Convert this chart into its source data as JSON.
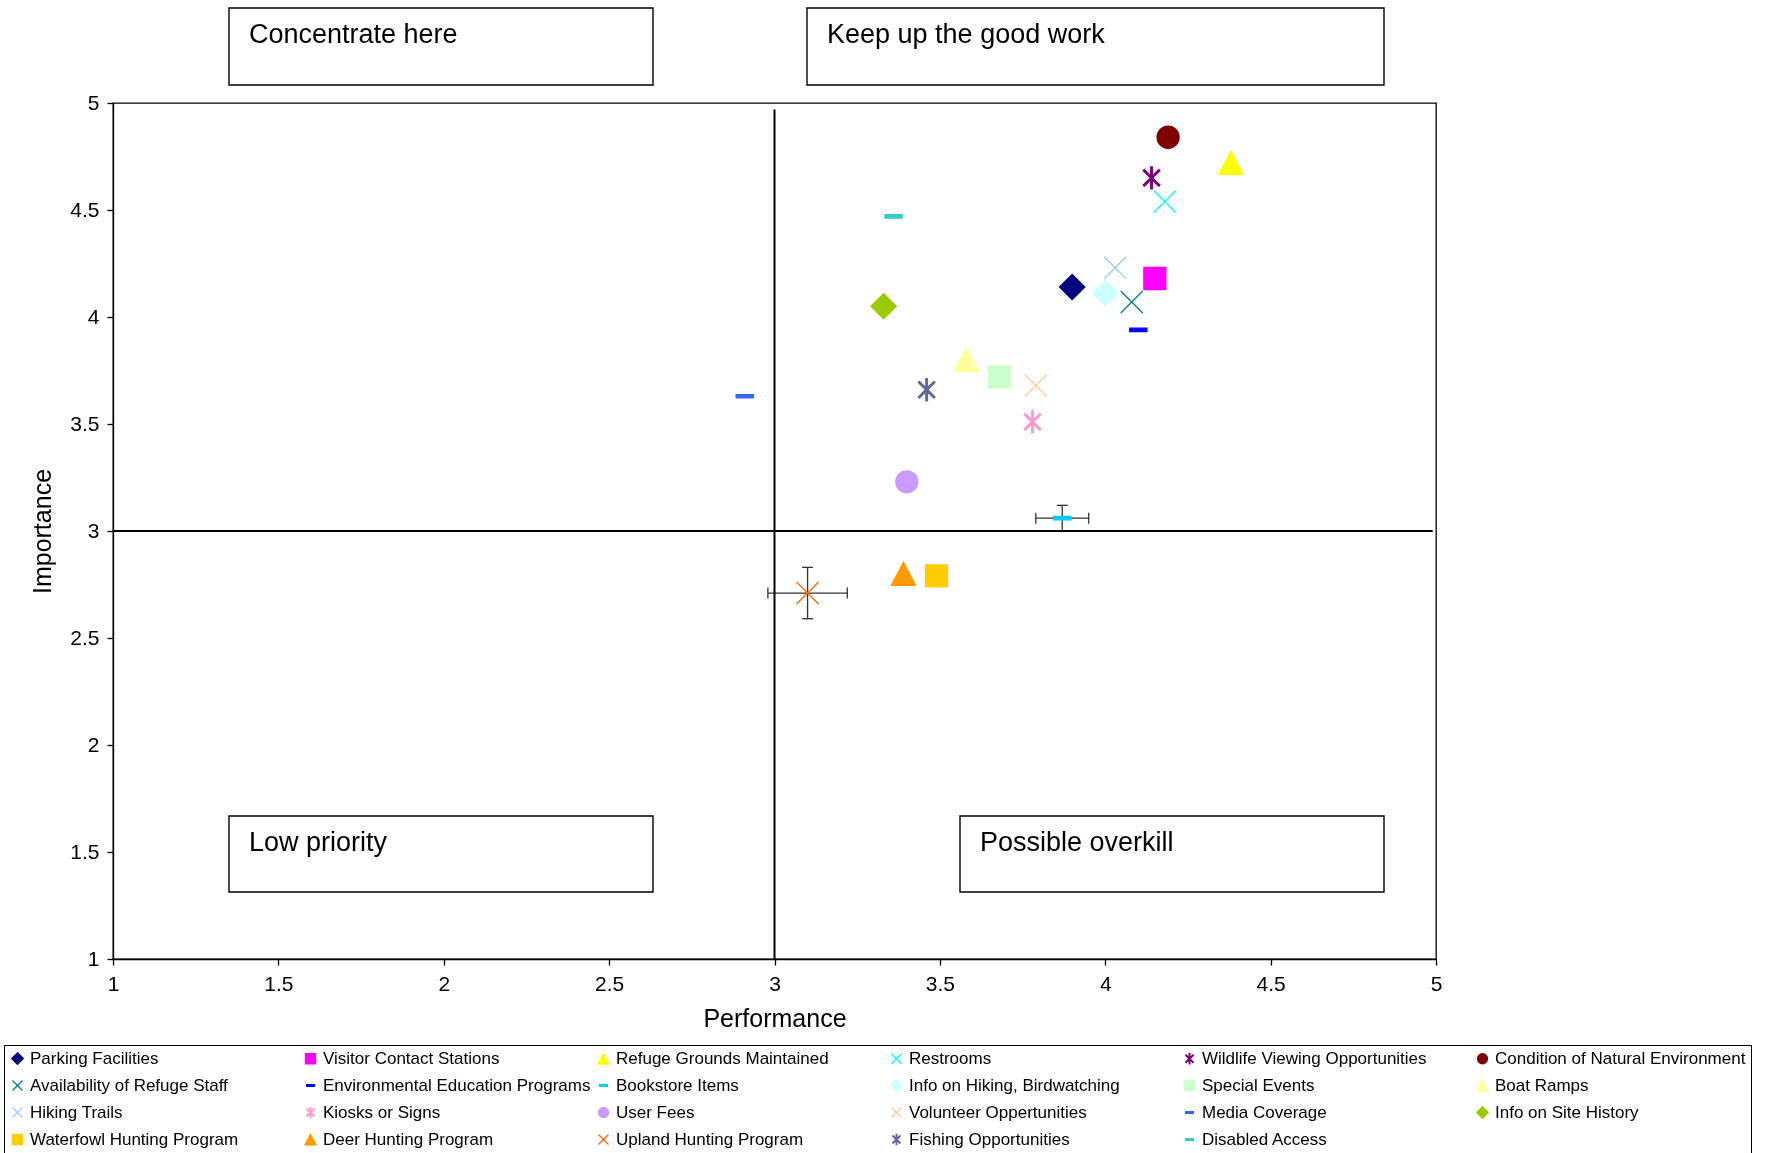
{
  "chart_data": {
    "type": "scatter",
    "xlabel": "Performance",
    "ylabel": "Importance",
    "xlim": [
      1,
      5
    ],
    "ylim": [
      1,
      5
    ],
    "xticks": [
      1,
      1.5,
      2,
      2.5,
      3,
      3.5,
      4,
      4.5,
      5
    ],
    "yticks": [
      1,
      1.5,
      2,
      2.5,
      3,
      3.5,
      4,
      4.5,
      5
    ],
    "legend": "bottom",
    "annotations": [
      "Concentrate here",
      "Keep up the good work",
      "Low priority",
      "Possible overkill"
    ],
    "series": [
      {
        "name": "Parking Facilities",
        "color": "#000080",
        "marker": "diamond",
        "x": [
          3.9
        ],
        "values": [
          4.14
        ]
      },
      {
        "name": "Visitor Contact Stations",
        "color": "#ff00ff",
        "marker": "square",
        "x": [
          4.15
        ],
        "values": [
          4.18
        ]
      },
      {
        "name": "Refuge Grounds Maintained",
        "color": "#ffff00",
        "marker": "triangle",
        "x": [
          4.38
        ],
        "values": [
          4.72
        ]
      },
      {
        "name": "Restrooms",
        "color": "#00ffff",
        "marker": "cross",
        "x": [
          4.18
        ],
        "values": [
          4.54
        ]
      },
      {
        "name": "Wildlife Viewing Opportunities",
        "color": "#800080",
        "marker": "star",
        "x": [
          4.14
        ],
        "values": [
          4.65
        ]
      },
      {
        "name": "Condition of Natural Environment",
        "color": "#800000",
        "marker": "circle",
        "x": [
          4.19
        ],
        "values": [
          4.84
        ]
      },
      {
        "name": "Availability of Refuge Staff",
        "color": "#008080",
        "marker": "cross",
        "x": [
          4.08
        ],
        "values": [
          4.07
        ]
      },
      {
        "name": "Environmental Education Programs",
        "color": "#0000ff",
        "x": [
          4.1
        ],
        "values": [
          3.94
        ]
      },
      {
        "name": "Bookstore Items",
        "color": "#00ccff",
        "x": [
          3.87
        ],
        "values": [
          3.06
        ],
        "errors": [
          0.06
        ],
        "xerrors": [
          0.08
        ]
      },
      {
        "name": "Info on Hiking, Birdwatching",
        "color": "#ccffff",
        "marker": "diamond",
        "x": [
          4.0
        ],
        "values": [
          4.11
        ]
      },
      {
        "name": "Special Events",
        "color": "#ccffcc",
        "marker": "square",
        "x": [
          3.68
        ],
        "values": [
          3.72
        ]
      },
      {
        "name": "Boat Ramps",
        "color": "#ffff99",
        "marker": "triangle",
        "x": [
          3.58
        ],
        "values": [
          3.8
        ]
      },
      {
        "name": "Hiking Trails",
        "color": "#99ccff",
        "marker": "cross",
        "x": [
          4.03
        ],
        "values": [
          4.23
        ]
      },
      {
        "name": "Kiosks or Signs",
        "color": "#ff99cc",
        "marker": "star",
        "x": [
          3.78
        ],
        "values": [
          3.51
        ]
      },
      {
        "name": "User Fees",
        "color": "#cc99ff",
        "marker": "circle",
        "x": [
          3.4
        ],
        "values": [
          3.23
        ]
      },
      {
        "name": "Volunteer Oppertunities",
        "color": "#ffcc99",
        "marker": "cross",
        "x": [
          3.79
        ],
        "values": [
          3.68
        ]
      },
      {
        "name": "Media Coverage",
        "color": "#3366ff",
        "x": [
          2.91
        ],
        "values": [
          3.63
        ]
      },
      {
        "name": "Info on Site History",
        "color": "#99cc00",
        "marker": "diamond",
        "x": [
          3.33
        ],
        "values": [
          4.05
        ]
      },
      {
        "name": "Waterfowl Hunting Program",
        "color": "#ffcc00",
        "marker": "square",
        "x": [
          3.49
        ],
        "values": [
          2.79
        ]
      },
      {
        "name": "Deer Hunting Program",
        "color": "#ff9900",
        "marker": "triangle",
        "x": [
          3.39
        ],
        "values": [
          2.8
        ]
      },
      {
        "name": "Upland Hunting Program",
        "color": "#ff6600",
        "marker": "cross",
        "x": [
          3.1
        ],
        "values": [
          2.71
        ],
        "errors": [
          0.12
        ],
        "xerrors": [
          0.12
        ]
      },
      {
        "name": "Fishing Opportunities",
        "color": "#666699",
        "marker": "star",
        "x": [
          3.46
        ],
        "values": [
          3.66
        ]
      },
      {
        "name": "Disabled Access",
        "color": "#33cccc",
        "x": [
          3.36
        ],
        "values": [
          4.47
        ]
      },
      {
        "type": "line",
        "color": "#000000",
        "x": [
          3,
          3
        ],
        "values": [
          1,
          4.97
        ]
      },
      {
        "type": "line",
        "color": "#000000",
        "x": [
          1,
          4.99
        ],
        "values": [
          3,
          3
        ]
      }
    ]
  }
}
